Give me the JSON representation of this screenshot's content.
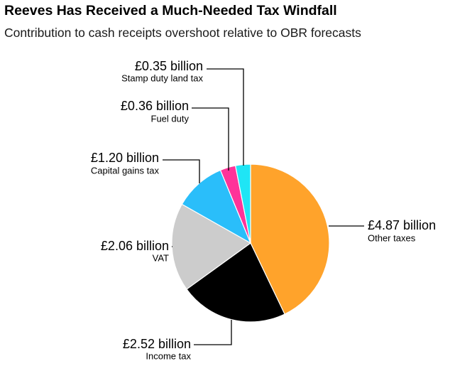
{
  "chart_data": {
    "type": "pie",
    "title": "Reeves Has Received a Much-Needed Tax Windfall",
    "subtitle": "Contribution to cash receipts overshoot relative to OBR forecasts",
    "unit": "£ billion",
    "slices": [
      {
        "label": "Other taxes",
        "value": 4.87,
        "value_label": "£4.87 billion",
        "color": "#FFA32B"
      },
      {
        "label": "Income tax",
        "value": 2.52,
        "value_label": "£2.52 billion",
        "color": "#000000"
      },
      {
        "label": "VAT",
        "value": 2.06,
        "value_label": "£2.06 billion",
        "color": "#CCCCCC"
      },
      {
        "label": "Capital gains tax",
        "value": 1.2,
        "value_label": "£1.20 billion",
        "color": "#2ABEFA"
      },
      {
        "label": "Fuel duty",
        "value": 0.36,
        "value_label": "£0.36 billion",
        "color": "#FF3399"
      },
      {
        "label": "Stamp duty land tax",
        "value": 0.35,
        "value_label": "£0.35 billion",
        "color": "#1FE5F5"
      }
    ],
    "start": "12 o'clock",
    "direction": "clockwise"
  }
}
